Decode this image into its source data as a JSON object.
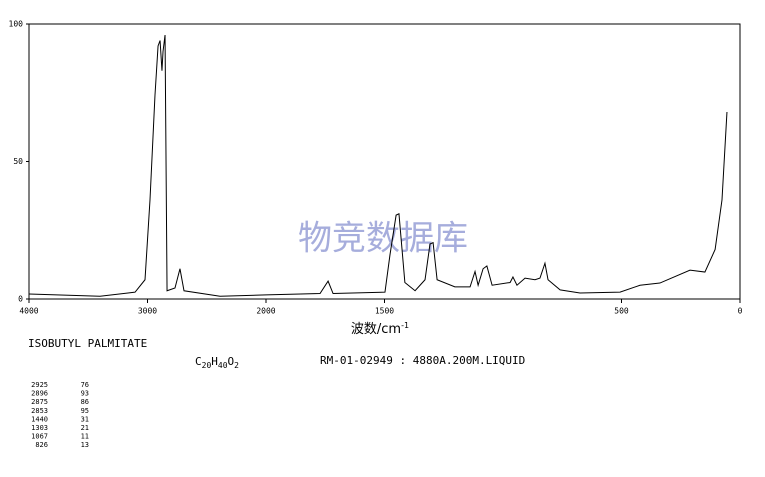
{
  "chart_data": {
    "type": "line",
    "x_label": "波数/cm",
    "x_label_sup": "-1",
    "watermark": "物竞数据库",
    "xlim": [
      4000,
      0
    ],
    "xscale_break": 2000,
    "xticks": [
      4000,
      3000,
      2000,
      1500,
      500,
      0
    ],
    "ylim": [
      0,
      100
    ],
    "yticks": [
      0,
      50,
      100
    ],
    "color": "#000000",
    "x": [
      4000,
      3401,
      3105,
      3021,
      2979,
      2937,
      2911,
      2894,
      2878,
      2869,
      2852,
      2835,
      2768,
      2726,
      2692,
      2388,
      2000,
      1772,
      1738,
      1717,
      1498,
      1477,
      1451,
      1439,
      1414,
      1371,
      1350,
      1329,
      1308,
      1295,
      1278,
      1203,
      1139,
      1118,
      1105,
      1084,
      1068,
      1046,
      970,
      958,
      941,
      907,
      865,
      844,
      823,
      810,
      759,
      675,
      506,
      422,
      338,
      211,
      148,
      105,
      76,
      55
    ],
    "values": [
      1.8,
      1,
      2.5,
      7,
      36,
      74,
      92,
      94,
      83,
      90,
      96,
      3,
      4,
      11,
      3,
      1,
      1.5,
      2,
      6.5,
      2,
      2.5,
      16,
      30.5,
      31,
      6,
      3,
      5,
      7,
      20,
      20.5,
      7,
      4.4,
      4.4,
      10,
      5,
      11,
      12,
      5,
      6,
      8,
      5,
      7.6,
      7,
      7.6,
      13,
      7,
      3.3,
      2.2,
      2.5,
      5,
      5.8,
      10.5,
      9.8,
      18,
      36,
      68
    ]
  },
  "info": {
    "name": "ISOBUTYL PALMITATE",
    "formula": [
      "C",
      "20",
      "H",
      "40",
      "O",
      "2"
    ],
    "code": "RM-01-02949 : 4880A.200M.LIQUID",
    "peaks": [
      [
        "2925",
        "76"
      ],
      [
        "2896",
        "93"
      ],
      [
        "2875",
        "86"
      ],
      [
        "2853",
        "95"
      ],
      [
        "1440",
        "31"
      ],
      [
        "1303",
        "21"
      ],
      [
        "1067",
        "11"
      ],
      [
        "826",
        "13"
      ]
    ]
  }
}
